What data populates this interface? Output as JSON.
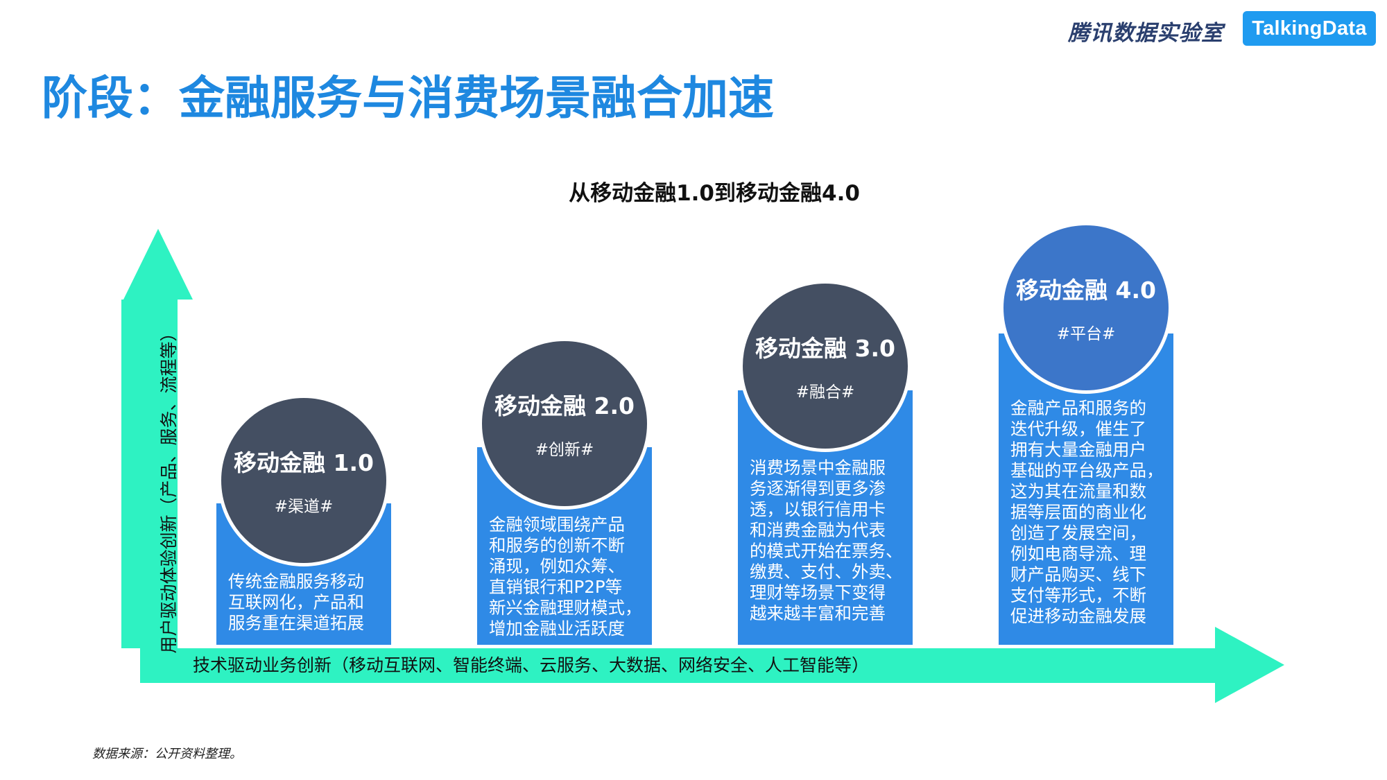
{
  "header": {
    "brand_cn": "腾讯数据实验室",
    "brand_logo": "TalkingData",
    "title": "阶段：金融服务与消费场景融合加速"
  },
  "diagram": {
    "subtitle": "从移动金融1.0到移动金融4.0",
    "y_axis_label": "用户驱动体验创新（产品、服务、流程等）",
    "x_axis_label": "技术驱动业务创新（移动互联网、智能终端、云服务、大数据、网络安全、人工智能等）",
    "arrow_color": "#2ef2c2",
    "stages": [
      {
        "name": "移动金融 1.0",
        "tag": "#渠道#",
        "lines": [
          "传统金融服务移动",
          "互联网化，产品和",
          "服务重在渠道拓展"
        ]
      },
      {
        "name": "移动金融 2.0",
        "tag": "#创新#",
        "lines": [
          "金融领域围绕产品",
          "和服务的创新不断",
          "涌现，例如众筹、",
          "直销银行和P2P等",
          "新兴金融理财模式，",
          "增加金融业活跃度"
        ]
      },
      {
        "name": "移动金融 3.0",
        "tag": "#融合#",
        "lines": [
          "消费场景中金融服",
          "务逐渐得到更多渗",
          "透，以银行信用卡",
          "和消费金融为代表",
          "的模式开始在票务、",
          "缴费、支付、外卖、",
          "理财等场景下变得",
          "越来越丰富和完善"
        ]
      },
      {
        "name": "移动金融 4.0",
        "tag": "#平台#",
        "lines": [
          "金融产品和服务的",
          "迭代升级，催生了",
          "拥有大量金融用户",
          "基础的平台级产品，",
          "这为其在流量和数",
          "据等层面的商业化",
          "创造了发展空间，",
          "例如电商导流、理",
          "财产品购买、线下",
          "支付等形式，不断",
          "促进移动金融发展"
        ]
      }
    ]
  },
  "footer": {
    "source": "数据来源：公开资料整理。"
  }
}
